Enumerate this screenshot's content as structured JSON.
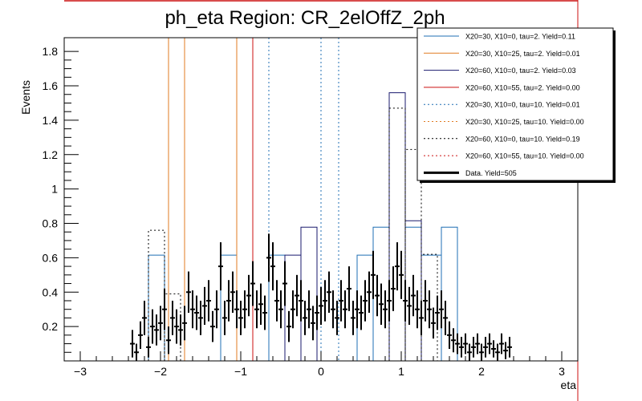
{
  "chart_data": {
    "type": "histogram",
    "title": "ph_eta Region: CR_2elOffZ_2ph",
    "xlabel": "eta",
    "ylabel": "Events",
    "xlim": [
      -3.2,
      3.2
    ],
    "ylim": [
      0,
      1.88
    ],
    "x_ticks": [
      -3,
      -2,
      -1,
      0,
      1,
      2,
      3
    ],
    "y_ticks": [
      0.2,
      0.4,
      0.6,
      0.8,
      1,
      1.2,
      1.4,
      1.6,
      1.8
    ],
    "grid": false,
    "legend_position": "top-right",
    "series": [
      {
        "name": "X20=30, X10=0, tau=2. Yield=0.11",
        "color": "#1f6fb4",
        "style": "solid",
        "hist": [
          [
            -2.15,
            -1.95,
            0.615
          ],
          [
            -1.25,
            -1.05,
            0.615
          ],
          [
            -0.65,
            -0.45,
            0.615
          ],
          [
            0.45,
            0.65,
            0.615
          ],
          [
            0.65,
            0.85,
            0.778
          ],
          [
            1.05,
            1.25,
            0.778
          ],
          [
            1.25,
            1.5,
            0.615
          ],
          [
            1.5,
            1.7,
            0.778
          ]
        ]
      },
      {
        "name": "X20=30, X10=25, tau=2. Yield=0.01",
        "color": "#e07b22",
        "style": "solid",
        "spikes": [
          -1.9,
          -1.7,
          -1.05
        ]
      },
      {
        "name": "X20=60, X10=0, tau=2. Yield=0.03",
        "color": "#1a1a6e",
        "style": "solid",
        "hist": [
          [
            -0.45,
            -0.25,
            0.615
          ],
          [
            -0.25,
            -0.05,
            0.778
          ],
          [
            0.85,
            1.05,
            1.56
          ],
          [
            1.05,
            1.25,
            0.815
          ]
        ]
      },
      {
        "name": "X20=60, X10=55, tau=2. Yield=0.00",
        "color": "#cc1111",
        "style": "solid",
        "spikes": [
          -0.85
        ]
      },
      {
        "name": "X20=30, X10=0, tau=10. Yield=0.01",
        "color": "#1f6fb4",
        "style": "dotted",
        "spikes": [
          -0.65,
          0.0,
          0.22
        ]
      },
      {
        "name": "X20=30, X10=25, tau=10. Yield=0.00",
        "color": "#e07b22",
        "style": "dotted",
        "spikes": []
      },
      {
        "name": "X20=60, X10=0, tau=10. Yield=0.19",
        "color": "#000000",
        "style": "dotted",
        "hist": [
          [
            -2.15,
            -1.95,
            0.76
          ],
          [
            -1.95,
            -1.75,
            0.39
          ],
          [
            0.85,
            1.05,
            1.47
          ],
          [
            1.05,
            1.25,
            1.23
          ],
          [
            1.25,
            1.45,
            0.62
          ]
        ]
      },
      {
        "name": "X20=60, X10=55, tau=10. Yield=0.00",
        "color": "#cc1111",
        "style": "dotted",
        "spikes": []
      },
      {
        "name": "Data. Yield=505",
        "color": "#000000",
        "style": "points",
        "x": [
          -2.35,
          -2.3,
          -2.25,
          -2.2,
          -2.15,
          -2.1,
          -2.05,
          -2.0,
          -1.95,
          -1.9,
          -1.85,
          -1.8,
          -1.75,
          -1.7,
          -1.65,
          -1.6,
          -1.55,
          -1.5,
          -1.45,
          -1.4,
          -1.35,
          -1.3,
          -1.25,
          -1.2,
          -1.15,
          -1.1,
          -1.05,
          -1.0,
          -0.95,
          -0.9,
          -0.85,
          -0.8,
          -0.75,
          -0.7,
          -0.65,
          -0.6,
          -0.55,
          -0.5,
          -0.45,
          -0.4,
          -0.35,
          -0.3,
          -0.25,
          -0.2,
          -0.15,
          -0.1,
          -0.05,
          0.0,
          0.05,
          0.1,
          0.15,
          0.2,
          0.25,
          0.3,
          0.35,
          0.4,
          0.45,
          0.5,
          0.55,
          0.6,
          0.65,
          0.7,
          0.75,
          0.8,
          0.85,
          0.9,
          0.95,
          1.0,
          1.05,
          1.1,
          1.15,
          1.2,
          1.25,
          1.3,
          1.35,
          1.4,
          1.45,
          1.5,
          1.55,
          1.6,
          1.65,
          1.7,
          1.75,
          1.8,
          1.85,
          1.9,
          1.95,
          2.0,
          2.05,
          2.1,
          2.15,
          2.2,
          2.25,
          2.3,
          2.35
        ],
        "y": [
          0.1,
          0.05,
          0.15,
          0.25,
          0.08,
          0.2,
          0.18,
          0.22,
          0.3,
          0.12,
          0.25,
          0.2,
          0.18,
          0.22,
          0.4,
          0.3,
          0.28,
          0.25,
          0.32,
          0.35,
          0.2,
          0.3,
          0.55,
          0.25,
          0.35,
          0.4,
          0.3,
          0.25,
          0.3,
          0.38,
          0.45,
          0.3,
          0.33,
          0.28,
          0.6,
          0.55,
          0.35,
          0.3,
          0.45,
          0.2,
          0.3,
          0.38,
          0.35,
          0.25,
          0.3,
          0.22,
          0.28,
          0.32,
          0.35,
          0.4,
          0.3,
          0.25,
          0.35,
          0.3,
          0.42,
          0.25,
          0.3,
          0.28,
          0.35,
          0.4,
          0.5,
          0.38,
          0.33,
          0.3,
          0.35,
          0.42,
          0.55,
          0.5,
          0.35,
          0.32,
          0.38,
          0.3,
          0.25,
          0.35,
          0.3,
          0.22,
          0.28,
          0.3,
          0.25,
          0.15,
          0.12,
          0.1,
          0.08,
          0.1,
          0.05,
          0.08,
          0.1,
          0.05,
          0.08,
          0.1,
          0.07,
          0.05,
          0.1,
          0.06,
          0.08
        ],
        "err": [
          0.08,
          0.05,
          0.08,
          0.1,
          0.06,
          0.1,
          0.09,
          0.1,
          0.12,
          0.08,
          0.1,
          0.1,
          0.09,
          0.1,
          0.12,
          0.11,
          0.1,
          0.1,
          0.11,
          0.12,
          0.09,
          0.11,
          0.14,
          0.1,
          0.12,
          0.12,
          0.11,
          0.1,
          0.11,
          0.12,
          0.13,
          0.11,
          0.12,
          0.1,
          0.14,
          0.14,
          0.12,
          0.11,
          0.13,
          0.09,
          0.11,
          0.12,
          0.12,
          0.1,
          0.11,
          0.1,
          0.1,
          0.11,
          0.12,
          0.12,
          0.11,
          0.1,
          0.12,
          0.11,
          0.13,
          0.1,
          0.11,
          0.1,
          0.12,
          0.12,
          0.14,
          0.12,
          0.12,
          0.11,
          0.12,
          0.13,
          0.14,
          0.14,
          0.12,
          0.11,
          0.12,
          0.11,
          0.1,
          0.12,
          0.11,
          0.09,
          0.1,
          0.11,
          0.1,
          0.08,
          0.07,
          0.06,
          0.06,
          0.06,
          0.05,
          0.06,
          0.06,
          0.05,
          0.06,
          0.06,
          0.05,
          0.05,
          0.06,
          0.05,
          0.06
        ]
      }
    ]
  }
}
